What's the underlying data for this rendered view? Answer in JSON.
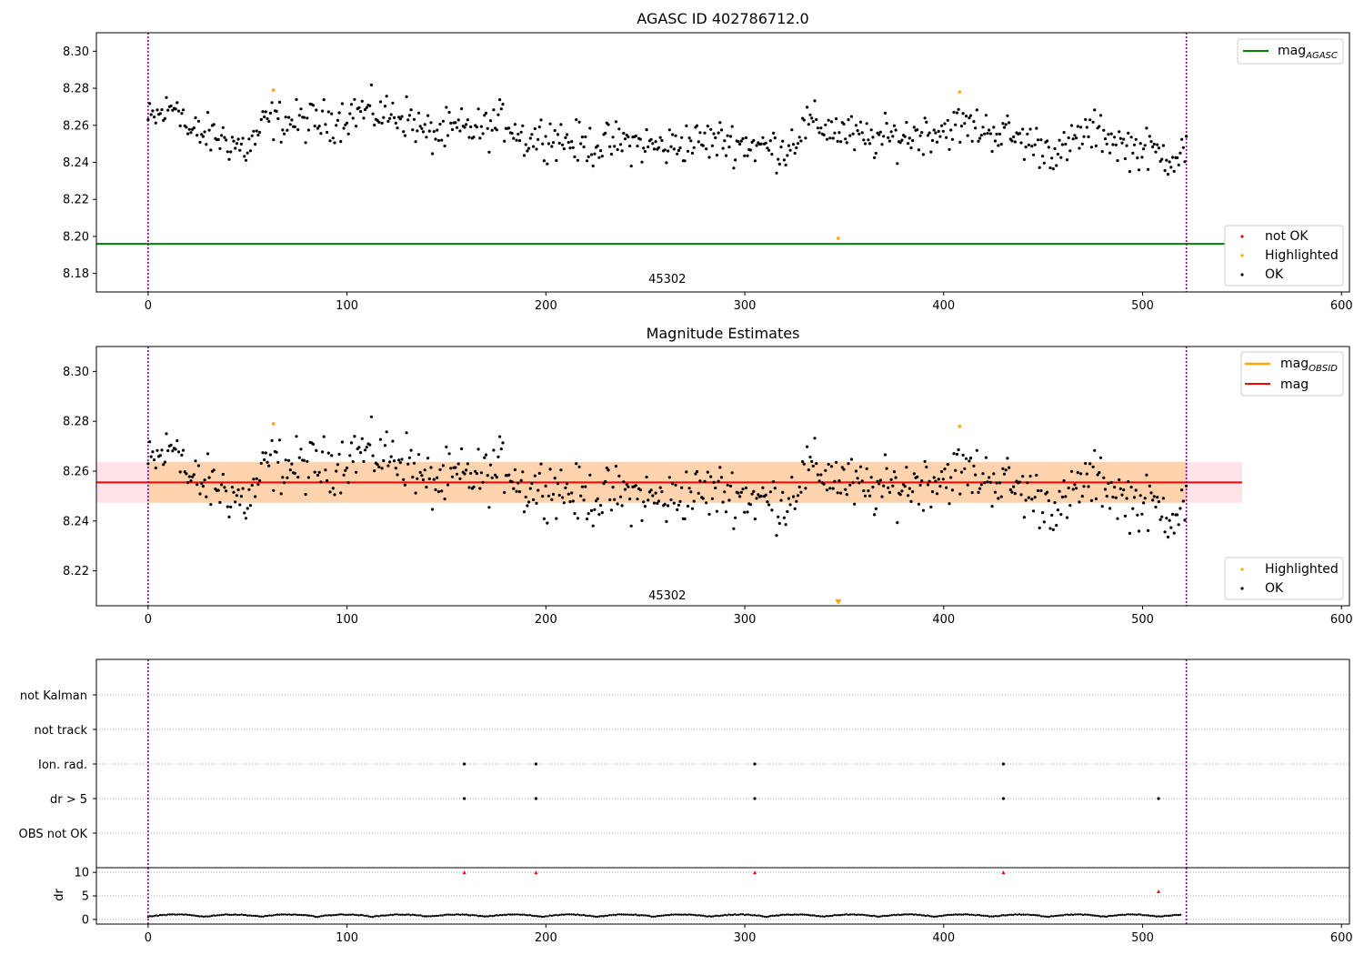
{
  "chart_data": [
    {
      "type": "scatter",
      "title": "AGASC ID 402786712.0",
      "xlim": [
        -26,
        604
      ],
      "ylim": [
        8.17,
        8.31
      ],
      "xticks": [
        0,
        100,
        200,
        300,
        400,
        500,
        600
      ],
      "yticks": [
        8.18,
        8.2,
        8.22,
        8.24,
        8.26,
        8.28,
        8.3
      ],
      "ytick_labels": [
        "8.18",
        "8.20",
        "8.22",
        "8.24",
        "8.26",
        "8.28",
        "8.30"
      ],
      "vlines": [
        0,
        522
      ],
      "vline_color": "#8b008b",
      "obsid_label": {
        "text": "45302",
        "x": 261,
        "y": 8.175
      },
      "hline": {
        "name": "mag_AGASC",
        "y": 8.196,
        "color": "#008000"
      },
      "highlighted": [
        {
          "x": 63,
          "y": 8.279
        },
        {
          "x": 347,
          "y": 8.199
        },
        {
          "x": 408,
          "y": 8.278
        }
      ],
      "legend_top": {
        "position": "top-right",
        "entries": [
          {
            "label": "mag",
            "sub": "AGASC",
            "color": "#008000"
          }
        ]
      },
      "legend_bottom": {
        "position": "lower-right",
        "entries": [
          {
            "label": "not OK",
            "color": "#ff0000"
          },
          {
            "label": "Highlighted",
            "color": "#ffa500"
          },
          {
            "label": "OK",
            "color": "#000000"
          }
        ]
      },
      "ok_series_color": "#000000"
    },
    {
      "type": "scatter",
      "title": "Magnitude Estimates",
      "xlim": [
        -26,
        604
      ],
      "ylim": [
        8.206,
        8.31
      ],
      "xticks": [
        0,
        100,
        200,
        300,
        400,
        500,
        600
      ],
      "yticks": [
        8.22,
        8.24,
        8.26,
        8.28,
        8.3
      ],
      "ytick_labels": [
        "8.22",
        "8.24",
        "8.26",
        "8.28",
        "8.30"
      ],
      "vlines": [
        0,
        522
      ],
      "vline_color": "#8b008b",
      "obsid_label": {
        "text": "45302",
        "x": 261,
        "y": 8.2085
      },
      "mag_line": {
        "name": "mag",
        "y": 8.2555,
        "color": "#ff0000"
      },
      "mag_band": {
        "y_low": 8.2473,
        "y_high": 8.2637,
        "x_from": -26,
        "x_to": 550,
        "color": "#ffc0cb"
      },
      "obsid_band": {
        "y_low": 8.2473,
        "y_high": 8.2637,
        "x_from": 0,
        "x_to": 522,
        "color": "#ffa500"
      },
      "highlighted": [
        {
          "x": 63,
          "y": 8.279
        },
        {
          "x": 408,
          "y": 8.278
        }
      ],
      "offscale_marker": {
        "x": 347,
        "y": 8.2075,
        "color": "#ffa500"
      },
      "legend_top": {
        "position": "top-right",
        "entries": [
          {
            "label": "mag",
            "sub": "OBSID",
            "color": "#ffa500"
          },
          {
            "label": "mag",
            "sub": "",
            "color": "#ff0000"
          }
        ]
      },
      "legend_bottom": {
        "position": "lower-right",
        "entries": [
          {
            "label": "Highlighted",
            "color": "#ffa500"
          },
          {
            "label": "OK",
            "color": "#000000"
          }
        ]
      }
    },
    {
      "type": "scatter",
      "title": "",
      "xlim": [
        -26,
        604
      ],
      "xticks": [
        0,
        100,
        200,
        300,
        400,
        500,
        600
      ],
      "flag_categories": [
        "not Kalman",
        "not track",
        "Ion. rad.",
        "dr > 5",
        "OBS not OK"
      ],
      "flags": {
        "Ion. rad.": [
          159,
          195,
          305,
          430
        ],
        "dr > 5": [
          159,
          195,
          305,
          430,
          508
        ]
      },
      "vlines": [
        0,
        522
      ],
      "vline_color": "#8b008b"
    },
    {
      "type": "scatter",
      "title": "",
      "ylabel": "dr",
      "xlim": [
        -26,
        604
      ],
      "ylim": [
        -1,
        11
      ],
      "xticks": [
        0,
        100,
        200,
        300,
        400,
        500,
        600
      ],
      "xtick_labels": [
        "0",
        "100",
        "200",
        "300",
        "400",
        "500",
        "600"
      ],
      "yticks": [
        0,
        5,
        10
      ],
      "ytick_labels": [
        "0",
        "5",
        "10"
      ],
      "dr_outliers": [
        {
          "x": 159,
          "y": 10
        },
        {
          "x": 195,
          "y": 10
        },
        {
          "x": 305,
          "y": 10
        },
        {
          "x": 430,
          "y": 10
        },
        {
          "x": 508,
          "y": 6
        }
      ],
      "outlier_color": "#ff0000",
      "vlines": [
        0,
        522
      ],
      "vline_color": "#8b008b"
    }
  ]
}
